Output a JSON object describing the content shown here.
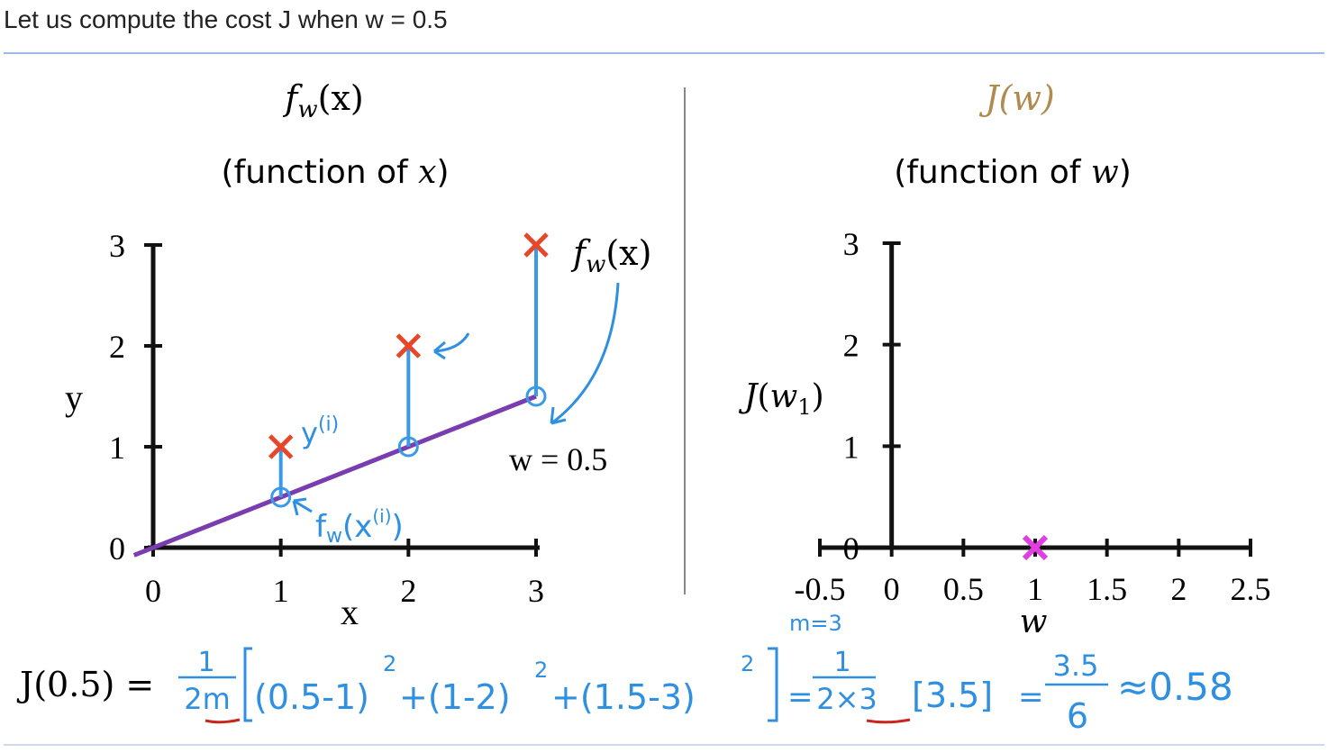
{
  "caption": "Let us compute the cost J when w = 0.5",
  "left_panel": {
    "title": "f_w(x)",
    "subtitle_prefix": "(function of ",
    "subtitle_var": "x",
    "subtitle_suffix": ")"
  },
  "right_panel": {
    "title": "J(w)",
    "subtitle_prefix": "(function of ",
    "subtitle_var": "w",
    "subtitle_suffix": ")",
    "title_color": "#b08a4e"
  },
  "chart_data": [
    {
      "type": "scatter",
      "title": "f_w(x)",
      "subtitle": "(function of x)",
      "xlabel": "x",
      "ylabel": "y",
      "xlim": [
        0,
        3
      ],
      "ylim": [
        0,
        3
      ],
      "xticks": [
        "0",
        "1",
        "2",
        "3"
      ],
      "yticks": [
        "0",
        "1",
        "2",
        "3"
      ],
      "points": [
        {
          "x": 1,
          "y": 1
        },
        {
          "x": 2,
          "y": 2
        },
        {
          "x": 3,
          "y": 3
        }
      ],
      "fit_line": {
        "w": 0.5,
        "label": "w = 0.5",
        "color": "#7a3db0"
      },
      "annotations": {
        "y_i": "y(i)",
        "f_w_x_i": "fw(x(i))",
        "f_w_x": "f_w(x)"
      },
      "colors": {
        "points": "#e8462a",
        "residuals": "#3b9ae6"
      }
    },
    {
      "type": "scatter",
      "title": "J(w)",
      "subtitle": "(function of w)",
      "xlabel": "w",
      "ylabel": "J(w_1)",
      "xlim": [
        -0.5,
        2.5
      ],
      "ylim": [
        0,
        3
      ],
      "xticks": [
        "-0.5",
        "0",
        "0.5",
        "1",
        "1.5",
        "2",
        "2.5"
      ],
      "yticks": [
        "0",
        "1",
        "2",
        "3"
      ],
      "points": [
        {
          "x": 1,
          "y": 0
        }
      ],
      "colors": {
        "points": "#e040e0"
      }
    }
  ],
  "equation": {
    "lhs": "J(0.5) =",
    "m_note": "m=3",
    "frac1_num": "1",
    "frac1_den": "2m",
    "term1": "(0.5-1)",
    "term2": "+(1-2)",
    "term3": "+(1.5-3)",
    "exp": "2",
    "eq_part": "=",
    "frac2_num": "1",
    "frac2_den": "2×3",
    "bracket_val": "[3.5]",
    "frac3_num": "3.5",
    "frac3_den": "6",
    "approx": "≈0.58"
  }
}
